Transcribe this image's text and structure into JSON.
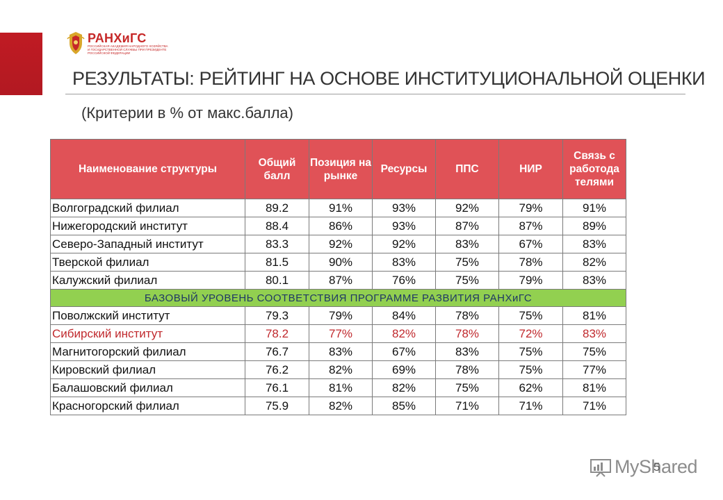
{
  "logo": {
    "name": "РАНХиГС",
    "subtitle": "РОССИЙСКАЯ АКАДЕМИЯ НАРОДНОГО ХОЗЯЙСТВА И ГОСУДАРСТВЕННОЙ СЛУЖБЫ ПРИ ПРЕЗИДЕНТЕ РОССИЙСКОЙ ФЕДЕРАЦИИ"
  },
  "title": "РЕЗУЛЬТАТЫ: РЕЙТИНГ НА ОСНОВЕ ИНСТИТУЦИОНАЛЬНОЙ ОЦЕНКИ",
  "subtitle": "(Критерии в % от макс.балла)",
  "table": {
    "headers": [
      "Наименование структуры",
      "Общий балл",
      "Позиция на рынке",
      "Ресурсы",
      "ППС",
      "НИР",
      "Связь с работода телями"
    ],
    "rows_top": [
      [
        "Волгоградский филиал",
        "89.2",
        "91%",
        "93%",
        "92%",
        "79%",
        "91%"
      ],
      [
        "Нижегородский институт",
        "88.4",
        "86%",
        "93%",
        "87%",
        "87%",
        "89%"
      ],
      [
        "Северо-Западный институт",
        "83.3",
        "92%",
        "92%",
        "83%",
        "67%",
        "83%"
      ],
      [
        "Тверской филиал",
        "81.5",
        "90%",
        "83%",
        "75%",
        "78%",
        "82%"
      ],
      [
        "Калужский филиал",
        "80.1",
        "87%",
        "76%",
        "75%",
        "79%",
        "83%"
      ]
    ],
    "band": "БАЗОВЫЙ УРОВЕНЬ СООТВЕТСТВИЯ ПРОГРАММЕ РАЗВИТИЯ РАНХиГС",
    "rows_bottom": [
      [
        "Поволжский институт",
        "79.3",
        "79%",
        "84%",
        "78%",
        "75%",
        "81%"
      ],
      [
        "Сибирский институт",
        "78.2",
        "77%",
        "82%",
        "78%",
        "72%",
        "83%"
      ],
      [
        "Магнитогорский филиал",
        "76.7",
        "83%",
        "67%",
        "83%",
        "75%",
        "75%"
      ],
      [
        "Кировский филиал",
        "76.2",
        "82%",
        "69%",
        "78%",
        "75%",
        "77%"
      ],
      [
        "Балашовский филиал",
        "76.1",
        "81%",
        "82%",
        "75%",
        "62%",
        "81%"
      ],
      [
        "Красногорский филиал",
        "75.9",
        "82%",
        "85%",
        "71%",
        "71%",
        "71%"
      ]
    ],
    "highlight_row": "Сибирский институт"
  },
  "watermark": "MyShared",
  "page_number": "5",
  "colors": {
    "accent_red": "#c01b23",
    "header_fill": "#e05257",
    "band_fill": "#92d050",
    "highlight_text": "#c0292d"
  }
}
